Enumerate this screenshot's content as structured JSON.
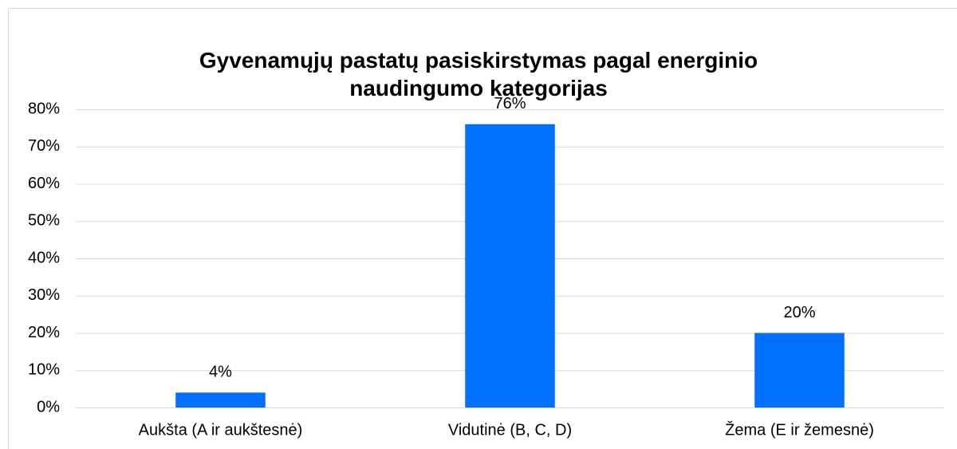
{
  "chart_data": {
    "type": "bar",
    "title": "Gyvenamųjų pastatų pasiskirstymas pagal energinio naudingumo kategorijas",
    "categories": [
      "Aukšta (A ir aukštesnė)",
      "Vidutinė (B, C, D)",
      "Žema (E ir žemesnė)"
    ],
    "values": [
      4,
      76,
      20
    ],
    "value_labels": [
      "4%",
      "76%",
      "20%"
    ],
    "color": "#0070ff",
    "ylim": [
      0,
      80
    ],
    "yticks": [
      {
        "value": 0,
        "label": "0%"
      },
      {
        "value": 10,
        "label": "10%"
      },
      {
        "value": 20,
        "label": "20%"
      },
      {
        "value": 30,
        "label": "30%"
      },
      {
        "value": 40,
        "label": "40%"
      },
      {
        "value": 50,
        "label": "50%"
      },
      {
        "value": 60,
        "label": "60%"
      },
      {
        "value": 70,
        "label": "70%"
      },
      {
        "value": 80,
        "label": "80%"
      }
    ],
    "grid": true
  }
}
